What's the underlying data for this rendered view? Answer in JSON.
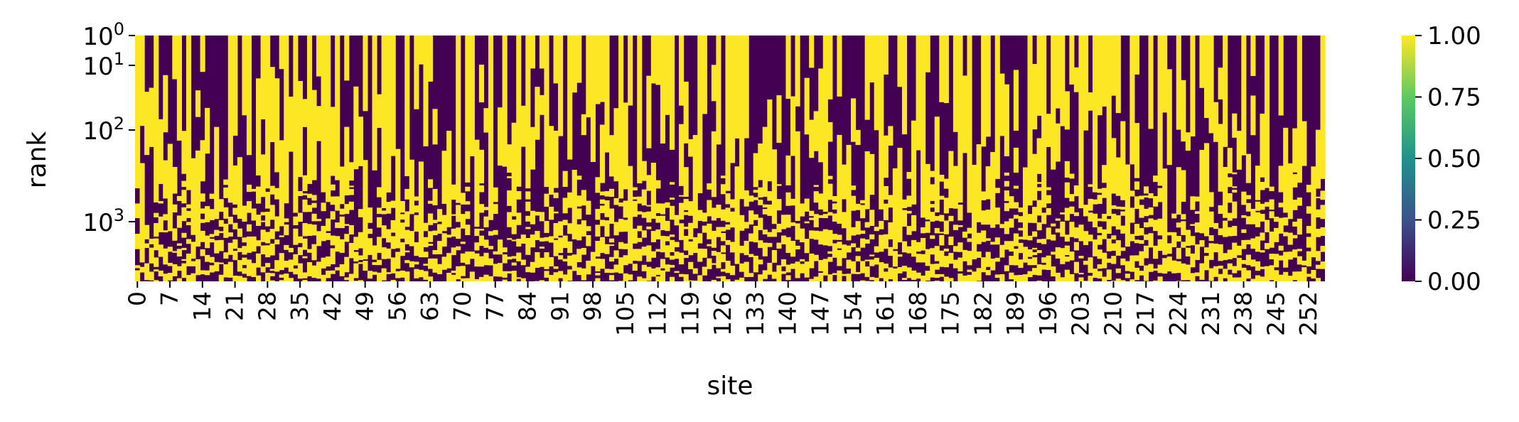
{
  "chart_data": {
    "type": "heatmap",
    "title": "",
    "xlabel": "site",
    "ylabel": "rank",
    "x_tick_labels": [
      "0",
      "7",
      "14",
      "21",
      "28",
      "35",
      "42",
      "49",
      "56",
      "63",
      "70",
      "77",
      "84",
      "91",
      "98",
      "105",
      "112",
      "119",
      "126",
      "133",
      "140",
      "147",
      "154",
      "161",
      "168",
      "175",
      "182",
      "189",
      "196",
      "203",
      "210",
      "217",
      "224",
      "231",
      "238",
      "245",
      "252"
    ],
    "y_tick_labels": [
      {
        "base": "10",
        "exp": "0",
        "value": 1
      },
      {
        "base": "10",
        "exp": "1",
        "value": 10
      },
      {
        "base": "10",
        "exp": "2",
        "value": 100
      },
      {
        "base": "10",
        "exp": "3",
        "value": 1000
      }
    ],
    "y_scale": "log",
    "n_sites": 256,
    "colorbar": {
      "label": "",
      "range": [
        0.0,
        1.0
      ],
      "ticks": [
        "0.00",
        "0.25",
        "0.50",
        "0.75",
        "1.00"
      ],
      "colormap": "viridis",
      "colors": [
        "#440154",
        "#3b528b",
        "#21918c",
        "#5ec962",
        "#fde725"
      ]
    },
    "cell_values": "binary (0.00 or 1.00)",
    "legend_placement": "right colorbar",
    "grid": false
  }
}
